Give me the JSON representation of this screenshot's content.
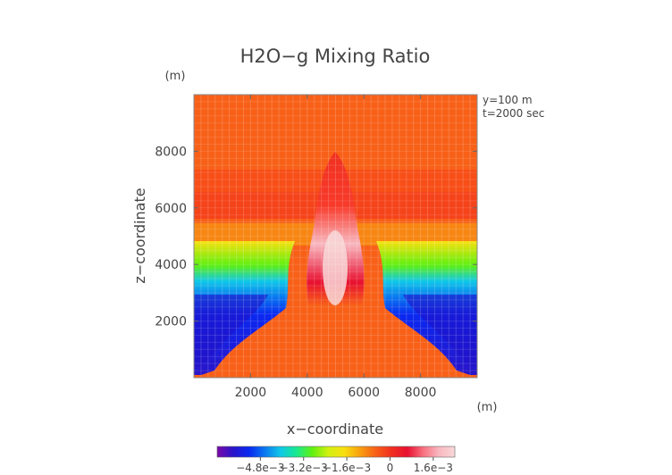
{
  "chart_data": {
    "type": "heatmap",
    "title": "H2O−g Mixing Ratio",
    "xlabel": "x−coordinate",
    "ylabel": "z−coordinate",
    "x_unit": "(m)",
    "y_unit": "(m)",
    "annotations": [
      "y=100 m",
      "t=2000 sec"
    ],
    "xlim": [
      0,
      10000
    ],
    "ylim": [
      0,
      10000
    ],
    "x_ticks": [
      2000,
      4000,
      6000,
      8000
    ],
    "y_ticks": [
      2000,
      4000,
      6000,
      8000
    ],
    "x_tick_labels": [
      "2000",
      "4000",
      "6000",
      "8000"
    ],
    "y_tick_labels": [
      "2000",
      "4000",
      "6000",
      "8000"
    ],
    "colorbar": {
      "range": [
        -0.0064,
        0.0024
      ],
      "tick_values": [
        -0.0048,
        -0.0032,
        -0.0016,
        0,
        0.0016
      ],
      "tick_labels": [
        "−4.8e−3",
        "−3.2e−3",
        "−1.6e−3",
        "0",
        "1.6e−3"
      ],
      "colors": [
        "#7a0aa8",
        "#2a14c8",
        "#0a28f0",
        "#0a78f0",
        "#10c8e8",
        "#18e890",
        "#60f010",
        "#d0f010",
        "#f8e010",
        "#f8a010",
        "#f86018",
        "#f03020",
        "#e81030",
        "#f87080",
        "#f8b8c0",
        "#f8d8d8"
      ]
    },
    "background_value": 0.0004,
    "features": [
      {
        "name": "dry layer (left)",
        "z_range": [
          300,
          3500
        ],
        "x_range": [
          0,
          3200
        ],
        "min_value": -0.0056
      },
      {
        "name": "dry layer (right)",
        "z_range": [
          300,
          3500
        ],
        "x_range": [
          6800,
          10000
        ],
        "min_value": -0.0056
      },
      {
        "name": "moist central plume",
        "x_center": 5000,
        "z_range": [
          2000,
          8000
        ],
        "max_value": 0.0024
      }
    ],
    "grid": true
  }
}
